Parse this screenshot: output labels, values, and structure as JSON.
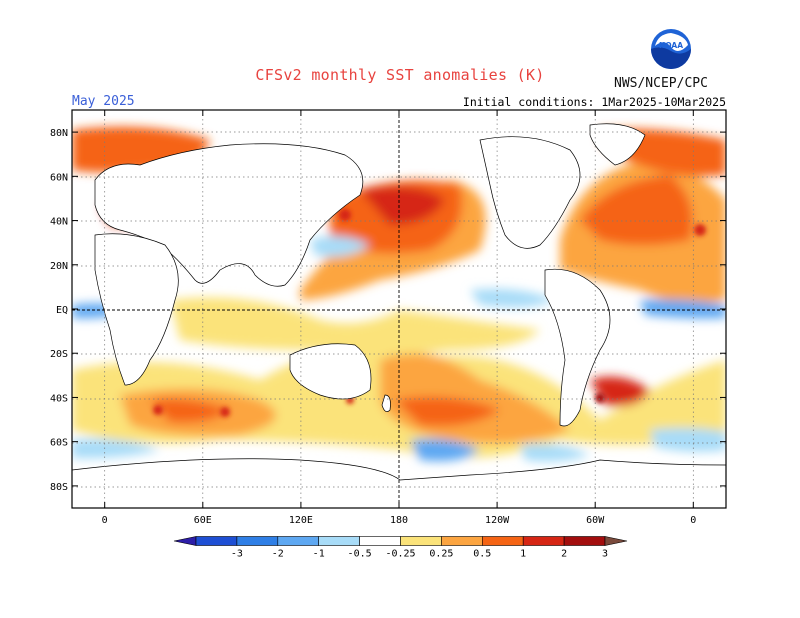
{
  "header": {
    "title": "CFSv2 monthly SST anomalies (K)",
    "target_month": "May 2025",
    "initial_conditions": "Initial conditions: 1Mar2025-10Mar2025",
    "agency": "NWS/NCEP/CPC",
    "logo_text": "NOAA"
  },
  "map": {
    "lat_labels": [
      "80N",
      "60N",
      "40N",
      "20N",
      "EQ",
      "20S",
      "40S",
      "60S",
      "80S"
    ],
    "lat_values": [
      80,
      60,
      40,
      20,
      0,
      -20,
      -40,
      -60,
      -80
    ],
    "lon_labels": [
      "0",
      "60E",
      "120E",
      "180",
      "120W",
      "60W",
      "0"
    ],
    "lon_values": [
      0,
      60,
      120,
      180,
      240,
      300,
      360
    ],
    "lon_range": [
      -20,
      380
    ],
    "lat_range": [
      -90,
      90
    ],
    "reference_lines": [
      "EQ",
      "180"
    ]
  },
  "colorbar": {
    "labels": [
      "-3",
      "-2",
      "-1",
      "-0.5",
      "-0.25",
      "0.25",
      "0.5",
      "1",
      "2",
      "3"
    ],
    "colors": [
      "#2d1ea8",
      "#1e4fd4",
      "#2f7fe6",
      "#5ea8f2",
      "#a8dcf8",
      "#ffffff",
      "#fbe37a",
      "#fca541",
      "#f56414",
      "#d62614",
      "#a30e0e",
      "#7a4a3c"
    ]
  }
}
